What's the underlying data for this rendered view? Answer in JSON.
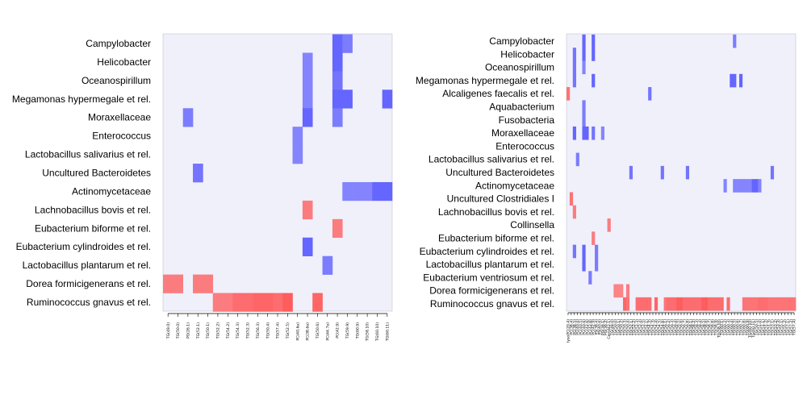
{
  "chart_data": [
    {
      "type": "heatmap",
      "colors": {
        "background": "#f0f0fb",
        "positive": "#ff5555",
        "negative": "#5555ff"
      },
      "rows": [
        "Campylobacter",
        "Helicobacter",
        "Oceanospirillum",
        "Megamonas hypermegale et rel.",
        "Moraxellaceae",
        "Enterococcus",
        "Lactobacillus salivarius et rel.",
        "Uncultured Bacteroidetes",
        "Actinomycetaceae",
        "Lachnobacillus bovis et rel.",
        "Eubacterium biforme et rel.",
        "Eubacterium cylindroides et rel.",
        "Lactobacillus plantarum et rel.",
        "Dorea formicigenerans et rel.",
        "Ruminococcus gnavus et rel."
      ],
      "columns": [
        "TG(49.0)",
        "TG(50.0)",
        "PG(26.1)",
        "TG(52.1)",
        "TG(50.1)",
        "TG(52.2)",
        "TG(54.2)",
        "TG(54.3)",
        "TG(52.3)",
        "TG(56.3)",
        "TG(50.4)",
        "TG(57.4)",
        "TG(52.5)",
        "PC(40.6e)",
        "PC(38.6e)",
        "TG(50.6)",
        "PC(44.7e)",
        "PC(42.9)",
        "TG(59.9)",
        "TG(60.9)",
        "TG(58.10)",
        "TG(60.10)",
        "TG(60.11)"
      ],
      "cells": [
        [
          0,
          17,
          -0.9
        ],
        [
          0,
          18,
          -0.75
        ],
        [
          1,
          14,
          -0.7
        ],
        [
          1,
          17,
          -0.9
        ],
        [
          2,
          14,
          -0.7
        ],
        [
          2,
          17,
          -0.8
        ],
        [
          3,
          14,
          -0.7
        ],
        [
          3,
          17,
          -0.9
        ],
        [
          3,
          18,
          -0.9
        ],
        [
          3,
          22,
          -0.9
        ],
        [
          4,
          2,
          -0.75
        ],
        [
          4,
          14,
          -0.9
        ],
        [
          4,
          17,
          -0.75
        ],
        [
          5,
          13,
          -0.7
        ],
        [
          6,
          13,
          -0.7
        ],
        [
          7,
          3,
          -0.8
        ],
        [
          8,
          18,
          -0.7
        ],
        [
          8,
          19,
          -0.7
        ],
        [
          8,
          20,
          -0.7
        ],
        [
          8,
          21,
          -0.9
        ],
        [
          8,
          22,
          -0.9
        ],
        [
          9,
          14,
          0.75
        ],
        [
          10,
          17,
          0.75
        ],
        [
          11,
          14,
          -0.9
        ],
        [
          12,
          16,
          -0.75
        ],
        [
          13,
          0,
          0.75
        ],
        [
          13,
          1,
          0.75
        ],
        [
          13,
          3,
          0.75
        ],
        [
          13,
          4,
          0.75
        ],
        [
          14,
          5,
          0.75
        ],
        [
          14,
          6,
          0.75
        ],
        [
          14,
          7,
          0.85
        ],
        [
          14,
          8,
          0.85
        ],
        [
          14,
          9,
          0.9
        ],
        [
          14,
          10,
          0.9
        ],
        [
          14,
          11,
          0.85
        ],
        [
          14,
          12,
          0.95
        ],
        [
          14,
          15,
          0.9
        ]
      ]
    },
    {
      "type": "heatmap",
      "colors": {
        "background": "#f0f0fb",
        "positive": "#ff5555",
        "negative": "#5555ff"
      },
      "rows": [
        "Campylobacter",
        "Helicobacter",
        "Oceanospirillum",
        "Megamonas hypermegale et rel.",
        "Alcaligenes faecalis et rel.",
        "Aquabacterium",
        "Fusobacteria",
        "Moraxellaceae",
        "Enterococcus",
        "Lactobacillus salivarius et rel.",
        "Uncultured Bacteroidetes",
        "Actinomycetaceae",
        "Uncultured Clostridiales I",
        "Lachnobacillus bovis et rel.",
        "Collinsella",
        "Eubacterium biforme et rel.",
        "Eubacterium cylindroides et rel.",
        "Lactobacillus plantarum et rel.",
        "Eubacterium ventriosum et rel.",
        "Dorea formicigenerans et rel.",
        "Ruminococcus gnavus et rel."
      ],
      "columns": [
        "lysoPC(20.4)",
        "PC(38.4)",
        "PC(38.5)",
        "PC(40.4)",
        "PC(40.5)",
        "PC(40.6)",
        "PC(42.6)",
        "PC(42.8)",
        "PC(42.9)",
        "PS(38.4)",
        "PS(40.6)",
        "PG(36.1)",
        "PG(36.2)",
        "Cer(d42.1)",
        "TG(48.0)",
        "TG(50.0)",
        "TG(50.1)",
        "TG(50.2)",
        "TG(50.3)",
        "TG(50.4)",
        "TG(52.1)",
        "TG(52.2)",
        "TG(52.3)",
        "TG(52.4)",
        "TG(52.5)",
        "TG(54.1)",
        "TG(54.2)",
        "TG(54.3)",
        "TG(54.4)",
        "TG(54.5)",
        "TG(54.6)",
        "TG(56.1)",
        "TG(56.2)",
        "TG(56.3)",
        "TG(56.4)",
        "TG(56.5)",
        "TG(56.6)",
        "TG(56.7)",
        "TG(56.8)",
        "TG(58.1)",
        "TG(58.2)",
        "TG(58.3)",
        "TG(58.4)",
        "TG(58.5)",
        "TG(58.6)",
        "TG(58.7)",
        "TG(58.8)",
        "TG(58.9)",
        "TG(58.10)",
        "TG(60.1)",
        "TG(60.2)",
        "TG(60.3)",
        "TG(60.4)",
        "TG(60.5)",
        "TG(60.6)",
        "TG(60.7)",
        "TG(60.8)",
        "TG(60.9)",
        "TG(60.10)",
        "TG(60.11)",
        "TG(50.5)",
        "TG(51.0)",
        "TG(51.1)",
        "TG(51.2)",
        "TG(51.3)",
        "TG(53.1)",
        "TG(53.2)",
        "TG(53.3)",
        "TG(55.1)",
        "TG(55.2)",
        "TG(57.1)",
        "TG(57.2)",
        "TG(57.4)"
      ],
      "cells": [
        [
          0,
          5,
          -0.9
        ],
        [
          0,
          8,
          -0.9
        ],
        [
          0,
          53,
          -0.75
        ],
        [
          1,
          2,
          -0.8
        ],
        [
          1,
          5,
          -0.9
        ],
        [
          1,
          8,
          -0.9
        ],
        [
          2,
          2,
          -0.8
        ],
        [
          2,
          5,
          -0.7
        ],
        [
          3,
          2,
          -0.8
        ],
        [
          3,
          8,
          -0.9
        ],
        [
          3,
          52,
          -0.9
        ],
        [
          3,
          53,
          -0.9
        ],
        [
          3,
          55,
          -0.9
        ],
        [
          4,
          0,
          0.8
        ],
        [
          4,
          26,
          -0.8
        ],
        [
          5,
          5,
          -0.75
        ],
        [
          6,
          5,
          -0.75
        ],
        [
          7,
          2,
          -0.9
        ],
        [
          7,
          5,
          -0.9
        ],
        [
          7,
          6,
          -0.9
        ],
        [
          7,
          8,
          -0.8
        ],
        [
          7,
          11,
          -0.7
        ],
        [
          9,
          3,
          -0.75
        ],
        [
          10,
          20,
          -0.8
        ],
        [
          10,
          30,
          -0.8
        ],
        [
          10,
          38,
          -0.8
        ],
        [
          10,
          65,
          -0.8
        ],
        [
          11,
          50,
          -0.7
        ],
        [
          11,
          53,
          -0.7
        ],
        [
          11,
          54,
          -0.7
        ],
        [
          11,
          55,
          -0.7
        ],
        [
          11,
          56,
          -0.7
        ],
        [
          11,
          57,
          -0.7
        ],
        [
          11,
          58,
          -0.7
        ],
        [
          11,
          59,
          -0.9
        ],
        [
          11,
          60,
          -0.9
        ],
        [
          11,
          61,
          -0.7
        ],
        [
          12,
          1,
          0.8
        ],
        [
          13,
          2,
          0.75
        ],
        [
          14,
          13,
          0.75
        ],
        [
          15,
          8,
          0.75
        ],
        [
          16,
          2,
          -0.8
        ],
        [
          16,
          5,
          -0.9
        ],
        [
          16,
          9,
          -0.75
        ],
        [
          17,
          5,
          -0.9
        ],
        [
          17,
          9,
          -0.75
        ],
        [
          18,
          7,
          -0.75
        ],
        [
          19,
          15,
          0.7
        ],
        [
          19,
          16,
          0.7
        ],
        [
          19,
          17,
          0.7
        ],
        [
          19,
          19,
          0.75
        ],
        [
          20,
          18,
          0.9
        ],
        [
          20,
          19,
          0.8
        ],
        [
          20,
          22,
          0.85
        ],
        [
          20,
          23,
          0.85
        ],
        [
          20,
          24,
          0.85
        ],
        [
          20,
          25,
          0.85
        ],
        [
          20,
          26,
          0.85
        ],
        [
          20,
          28,
          0.9
        ],
        [
          20,
          31,
          0.8
        ],
        [
          20,
          32,
          0.85
        ],
        [
          20,
          33,
          0.85
        ],
        [
          20,
          34,
          0.85
        ],
        [
          20,
          35,
          0.95
        ],
        [
          20,
          36,
          0.95
        ],
        [
          20,
          37,
          0.85
        ],
        [
          20,
          38,
          0.85
        ],
        [
          20,
          39,
          0.85
        ],
        [
          20,
          40,
          0.85
        ],
        [
          20,
          41,
          0.85
        ],
        [
          20,
          42,
          0.85
        ],
        [
          20,
          43,
          0.95
        ],
        [
          20,
          44,
          0.95
        ],
        [
          20,
          45,
          0.85
        ],
        [
          20,
          46,
          0.85
        ],
        [
          20,
          47,
          0.85
        ],
        [
          20,
          48,
          0.85
        ],
        [
          20,
          49,
          0.85
        ],
        [
          20,
          51,
          0.85
        ],
        [
          20,
          56,
          0.8
        ],
        [
          20,
          57,
          0.8
        ],
        [
          20,
          58,
          0.8
        ],
        [
          20,
          59,
          0.8
        ],
        [
          20,
          60,
          0.8
        ],
        [
          20,
          61,
          0.85
        ],
        [
          20,
          62,
          0.85
        ],
        [
          20,
          63,
          0.85
        ],
        [
          20,
          64,
          0.8
        ],
        [
          20,
          65,
          0.8
        ],
        [
          20,
          66,
          0.8
        ],
        [
          20,
          67,
          0.8
        ],
        [
          20,
          68,
          0.8
        ],
        [
          20,
          69,
          0.8
        ],
        [
          20,
          70,
          0.8
        ],
        [
          20,
          71,
          0.8
        ],
        [
          20,
          72,
          0.8
        ]
      ]
    }
  ]
}
